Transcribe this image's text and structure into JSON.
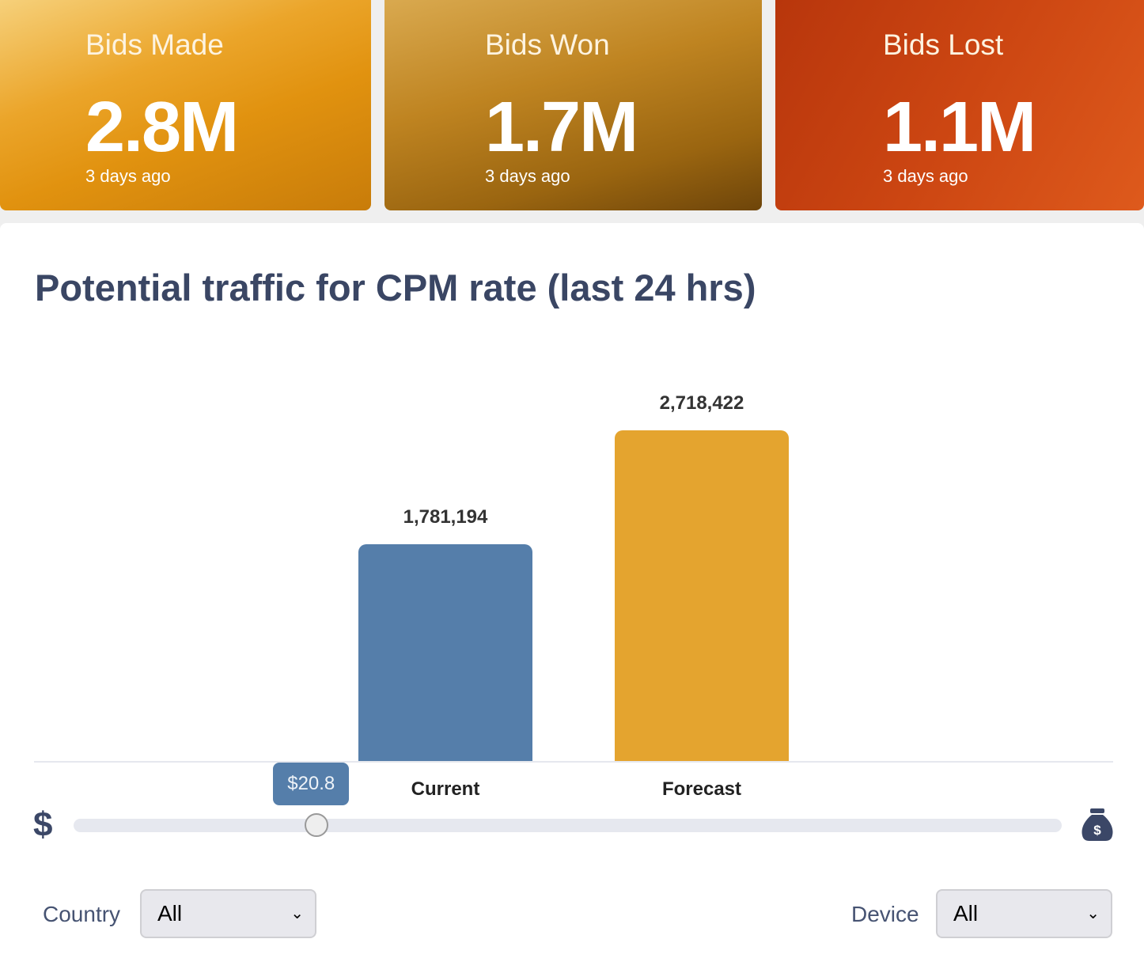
{
  "cards": [
    {
      "title": "Bids Made",
      "value": "2.8M",
      "subtitle": "3 days ago"
    },
    {
      "title": "Bids Won",
      "value": "1.7M",
      "subtitle": "3 days ago"
    },
    {
      "title": "Bids Lost",
      "value": "1.1M",
      "subtitle": "3 days ago"
    }
  ],
  "panel": {
    "title": "Potential traffic for CPM rate (last 24 hrs)"
  },
  "chart_data": {
    "type": "bar",
    "categories": [
      "Current",
      "Forecast"
    ],
    "values": [
      1781194,
      2718422
    ],
    "value_labels": [
      "1,781,194",
      "2,718,422"
    ],
    "colors": [
      "#557eaa",
      "#e4a42f"
    ],
    "ylim": [
      0,
      2718422
    ]
  },
  "slider": {
    "value_label": "$20.8",
    "fraction": 0.246,
    "min_icon": "dollar-icon",
    "max_icon": "money-bag-icon"
  },
  "filters": {
    "country_label": "Country",
    "country_value": "All",
    "device_label": "Device",
    "device_value": "All"
  }
}
